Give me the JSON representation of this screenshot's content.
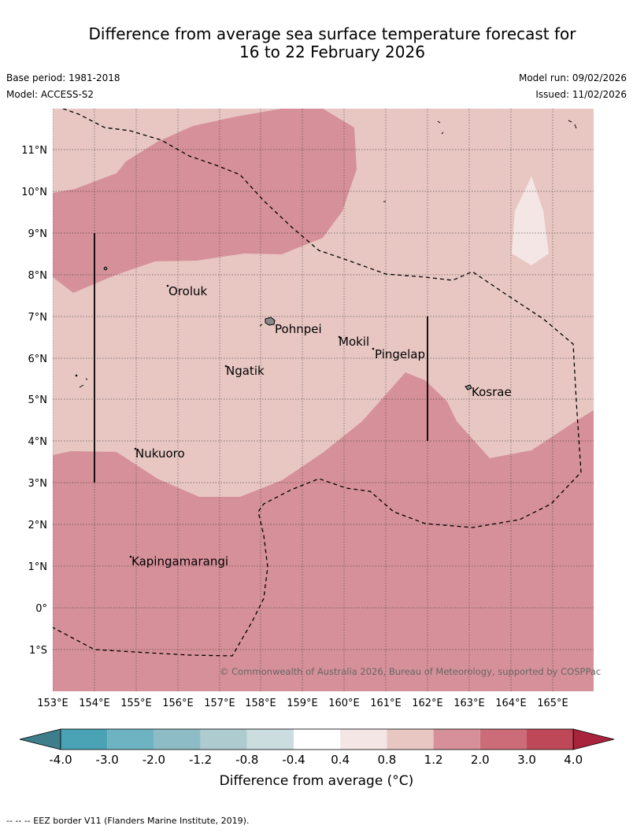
{
  "title": {
    "line1": "Difference from average sea surface temperature forecast for",
    "line2": "16 to 22 February 2026"
  },
  "meta": {
    "base_period": "Base period: 1981-2018",
    "model": "Model: ACCESS-S2",
    "model_run": "Model run: 09/02/2026",
    "issued": "Issued: 11/02/2026"
  },
  "map": {
    "lat_labels": [
      "11°N",
      "10°N",
      "9°N",
      "8°N",
      "7°N",
      "6°N",
      "5°N",
      "4°N",
      "3°N",
      "2°N",
      "1°N",
      "0°",
      "1°S"
    ],
    "lon_labels": [
      "153°E",
      "154°E",
      "155°E",
      "156°E",
      "157°E",
      "158°E",
      "159°E",
      "160°E",
      "161°E",
      "162°E",
      "163°E",
      "164°E",
      "165°E"
    ],
    "places": [
      "Oroluk",
      "Pohnpei",
      "Mokil",
      "Pingelap",
      "Ngatik",
      "Kosrae",
      "Nukuoro",
      "Kapingamarangi"
    ],
    "copyright": "© Commonwealth of Australia 2026, Bureau of Meteorology, supported by COSPPac",
    "colors": {
      "warm_light": "#e8c7c3",
      "warm_mid": "#d69099",
      "near_zero": "#f4e6e4"
    }
  },
  "colorbar": {
    "ticks": [
      "-4.0",
      "-3.0",
      "-2.0",
      "-1.2",
      "-0.8",
      "-0.4",
      "0.4",
      "0.8",
      "1.2",
      "2.0",
      "3.0",
      "4.0"
    ],
    "colors": [
      "#3d7d8c",
      "#4aa3b5",
      "#6db3c2",
      "#8ebcc6",
      "#aecbcf",
      "#ccdde0",
      "#ffffff",
      "#f4e6e4",
      "#e8c7c3",
      "#d69099",
      "#cc6c78",
      "#be4858",
      "#a8233c"
    ],
    "label": "Difference from average (°C)"
  },
  "footnote": "-- -- -- EEZ border V11 (Flanders Marine Institute, 2019)."
}
